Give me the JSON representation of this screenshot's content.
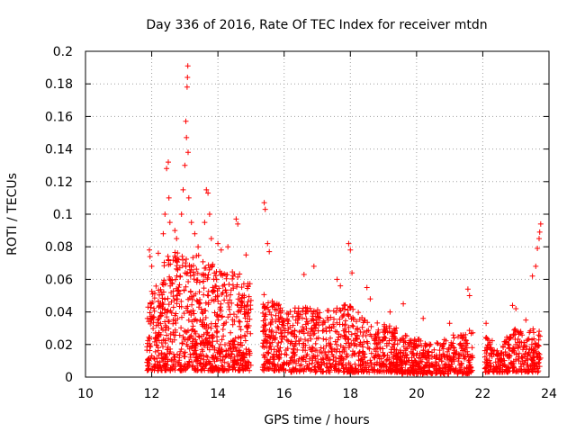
{
  "chart_data": {
    "type": "scatter",
    "title": "Day 336 of 2016, Rate Of TEC Index for receiver mtdn",
    "xlabel": "GPS time / hours",
    "ylabel": "ROTI / TECUs",
    "xlim": [
      10,
      24
    ],
    "ylim": [
      0,
      0.2
    ],
    "xticks": [
      "10",
      "12",
      "14",
      "16",
      "18",
      "20",
      "22",
      "24"
    ],
    "yticks": [
      "0",
      "0.02",
      "0.04",
      "0.06",
      "0.08",
      "0.1",
      "0.12",
      "0.14",
      "0.16",
      "0.18",
      "0.2"
    ],
    "grid": true,
    "marker": "+",
    "color": "#ff0000",
    "series": [
      {
        "name": "ROTI",
        "segments": [
          {
            "x_start": 11.85,
            "x_end": 15.0,
            "lower": 0.004,
            "upper": [
              [
                11.85,
                0.045
              ],
              [
                12.2,
                0.065
              ],
              [
                12.5,
                0.075
              ],
              [
                13.0,
                0.08
              ],
              [
                13.5,
                0.075
              ],
              [
                14.0,
                0.07
              ],
              [
                14.5,
                0.065
              ],
              [
                15.0,
                0.06
              ]
            ],
            "n": 900
          },
          {
            "x_start": 15.35,
            "x_end": 16.0,
            "lower": 0.004,
            "upper": [
              [
                15.35,
                0.055
              ],
              [
                15.7,
                0.045
              ],
              [
                16.0,
                0.045
              ]
            ],
            "n": 180
          },
          {
            "x_start": 16.0,
            "x_end": 19.5,
            "lower": 0.003,
            "upper": [
              [
                16.0,
                0.045
              ],
              [
                17.0,
                0.042
              ],
              [
                18.0,
                0.045
              ],
              [
                18.5,
                0.035
              ],
              [
                19.5,
                0.03
              ]
            ],
            "n": 700
          },
          {
            "x_start": 19.5,
            "x_end": 21.7,
            "lower": 0.002,
            "upper": [
              [
                19.5,
                0.028
              ],
              [
                20.5,
                0.02
              ],
              [
                21.0,
                0.025
              ],
              [
                21.7,
                0.03
              ]
            ],
            "n": 420
          },
          {
            "x_start": 22.05,
            "x_end": 23.75,
            "lower": 0.003,
            "upper": [
              [
                22.05,
                0.025
              ],
              [
                22.5,
                0.02
              ],
              [
                23.0,
                0.03
              ],
              [
                23.75,
                0.03
              ]
            ],
            "n": 320
          }
        ],
        "outliers": [
          [
            11.93,
            0.078
          ],
          [
            11.95,
            0.074
          ],
          [
            12.0,
            0.068
          ],
          [
            12.2,
            0.076
          ],
          [
            12.35,
            0.088
          ],
          [
            12.4,
            0.1
          ],
          [
            12.45,
            0.128
          ],
          [
            12.5,
            0.132
          ],
          [
            12.52,
            0.11
          ],
          [
            12.55,
            0.095
          ],
          [
            12.7,
            0.09
          ],
          [
            12.75,
            0.085
          ],
          [
            12.9,
            0.1
          ],
          [
            12.95,
            0.115
          ],
          [
            13.0,
            0.13
          ],
          [
            13.03,
            0.157
          ],
          [
            13.05,
            0.147
          ],
          [
            13.07,
            0.178
          ],
          [
            13.08,
            0.184
          ],
          [
            13.09,
            0.191
          ],
          [
            13.1,
            0.138
          ],
          [
            13.12,
            0.11
          ],
          [
            13.2,
            0.095
          ],
          [
            13.3,
            0.088
          ],
          [
            13.4,
            0.08
          ],
          [
            13.6,
            0.095
          ],
          [
            13.65,
            0.115
          ],
          [
            13.7,
            0.113
          ],
          [
            13.75,
            0.1
          ],
          [
            13.8,
            0.085
          ],
          [
            14.0,
            0.082
          ],
          [
            14.1,
            0.078
          ],
          [
            14.3,
            0.08
          ],
          [
            14.55,
            0.097
          ],
          [
            14.6,
            0.094
          ],
          [
            14.85,
            0.075
          ],
          [
            15.4,
            0.107
          ],
          [
            15.43,
            0.103
          ],
          [
            15.5,
            0.082
          ],
          [
            15.55,
            0.077
          ],
          [
            16.6,
            0.063
          ],
          [
            16.9,
            0.068
          ],
          [
            17.6,
            0.06
          ],
          [
            17.7,
            0.056
          ],
          [
            17.95,
            0.082
          ],
          [
            18.0,
            0.078
          ],
          [
            18.05,
            0.064
          ],
          [
            18.5,
            0.055
          ],
          [
            18.6,
            0.048
          ],
          [
            19.2,
            0.04
          ],
          [
            19.6,
            0.045
          ],
          [
            20.2,
            0.036
          ],
          [
            21.0,
            0.033
          ],
          [
            21.55,
            0.054
          ],
          [
            21.6,
            0.05
          ],
          [
            22.1,
            0.033
          ],
          [
            22.9,
            0.044
          ],
          [
            23.0,
            0.042
          ],
          [
            23.5,
            0.062
          ],
          [
            23.6,
            0.068
          ],
          [
            23.65,
            0.079
          ],
          [
            23.7,
            0.085
          ],
          [
            23.75,
            0.094
          ],
          [
            23.72,
            0.089
          ],
          [
            23.3,
            0.035
          ]
        ]
      }
    ]
  }
}
